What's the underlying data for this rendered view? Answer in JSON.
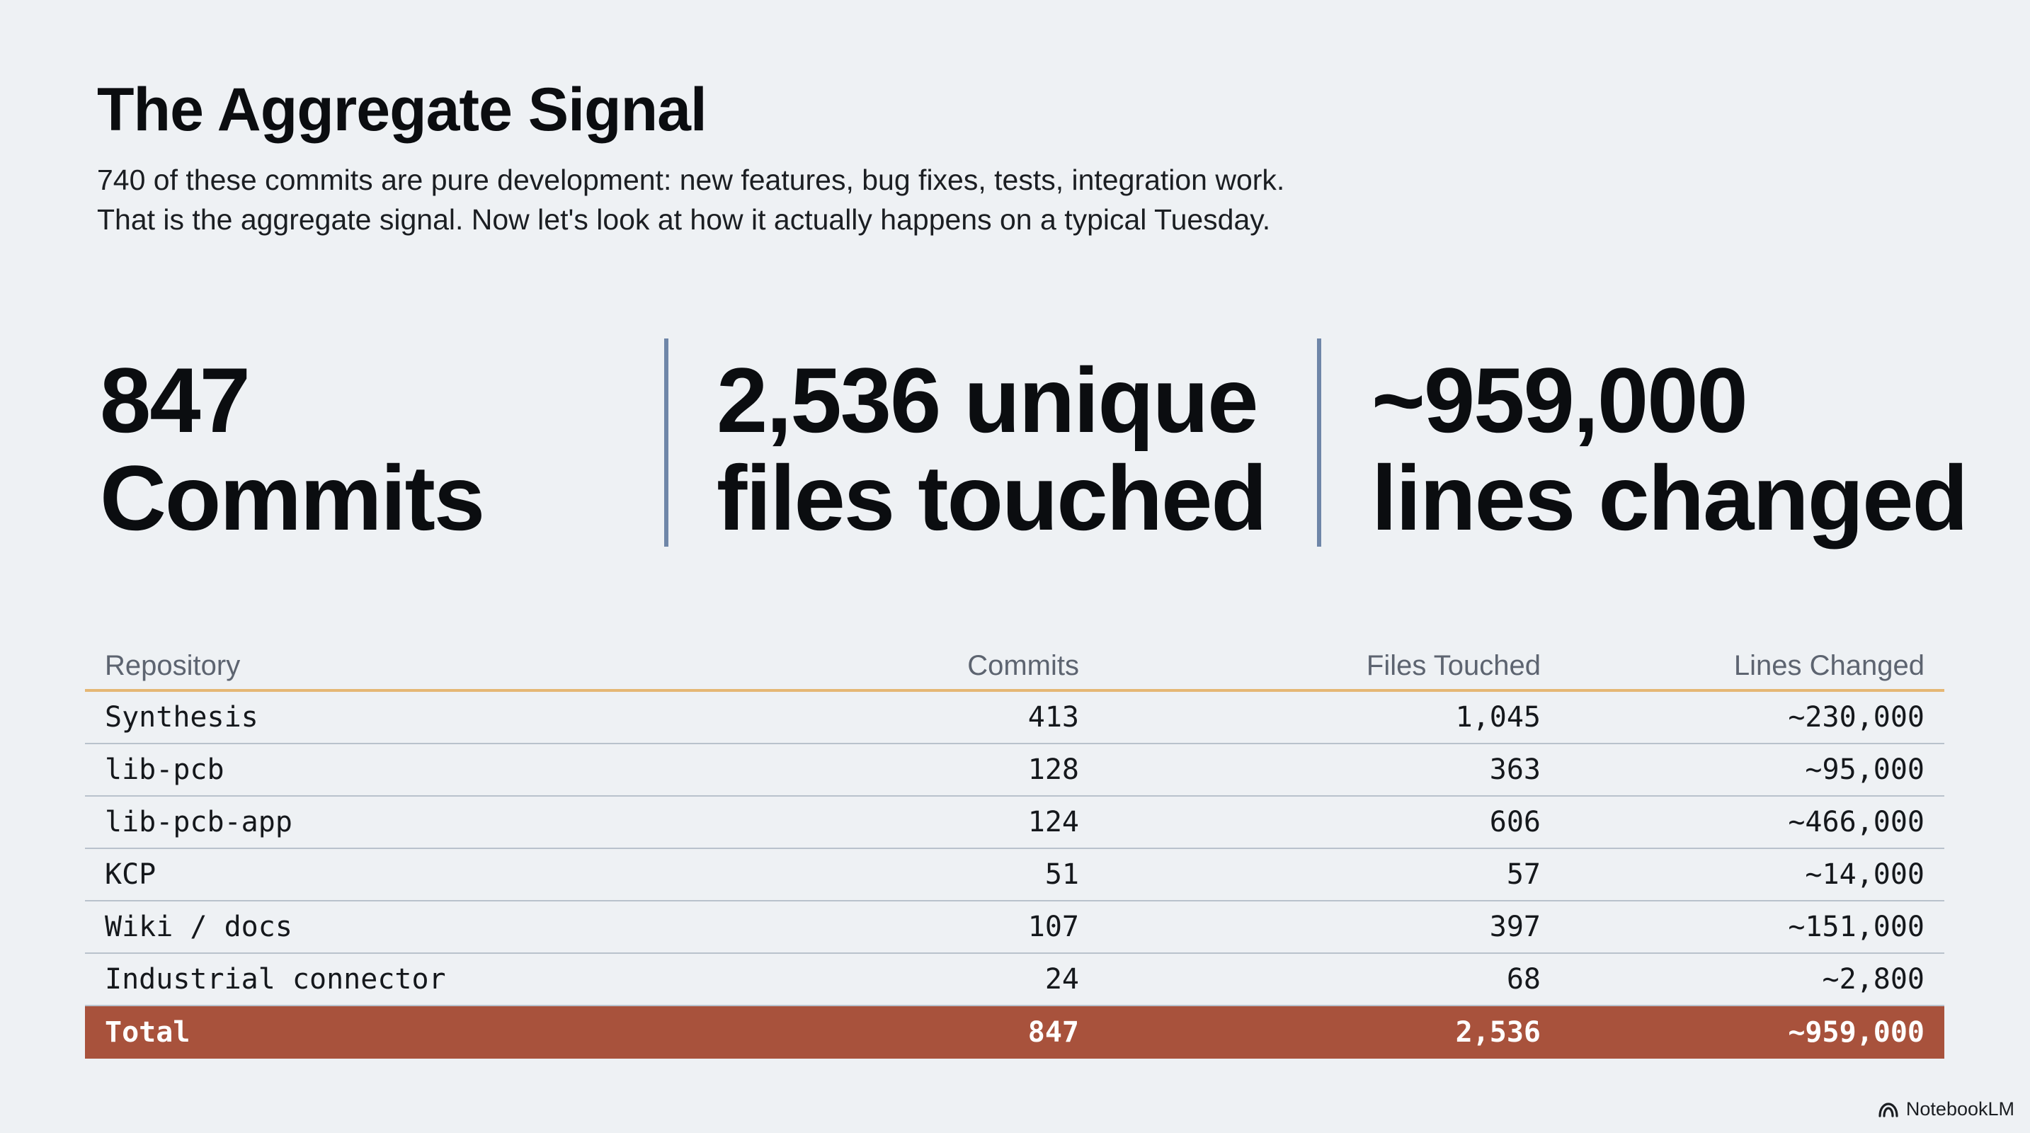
{
  "title": "The Aggregate Signal",
  "subtitle_lines": [
    "740 of these commits are pure development: new features, bug fixes, tests, integration work.",
    "That is the aggregate signal. Now let's look at how it actually happens on a typical Tuesday."
  ],
  "stats": [
    {
      "line1": "847",
      "line2": "Commits"
    },
    {
      "line1": "2,536 unique",
      "line2": "files touched"
    },
    {
      "line1": "~959,000",
      "line2": "lines changed"
    }
  ],
  "table": {
    "headers": {
      "repository": "Repository",
      "commits": "Commits",
      "files": "Files Touched",
      "lines": "Lines Changed"
    },
    "rows": [
      {
        "repository": "Synthesis",
        "commits": "413",
        "files": "1,045",
        "lines": "~230,000"
      },
      {
        "repository": "lib-pcb",
        "commits": "128",
        "files": "363",
        "lines": "~95,000"
      },
      {
        "repository": "lib-pcb-app",
        "commits": "124",
        "files": "606",
        "lines": "~466,000"
      },
      {
        "repository": "KCP",
        "commits": "51",
        "files": "57",
        "lines": "~14,000"
      },
      {
        "repository": "Wiki / docs",
        "commits": "107",
        "files": "397",
        "lines": "~151,000"
      },
      {
        "repository": "Industrial connector",
        "commits": "24",
        "files": "68",
        "lines": "~2,800"
      }
    ],
    "total": {
      "repository": "Total",
      "commits": "847",
      "files": "2,536",
      "lines": "~959,000"
    }
  },
  "brand": {
    "name": "NotebookLM",
    "icon": "notebooklm-logo-icon"
  },
  "colors": {
    "background": "#eef1f4",
    "divider": "#6f86a8",
    "header_rule": "#e5b774",
    "total_row": "#a8523c"
  }
}
